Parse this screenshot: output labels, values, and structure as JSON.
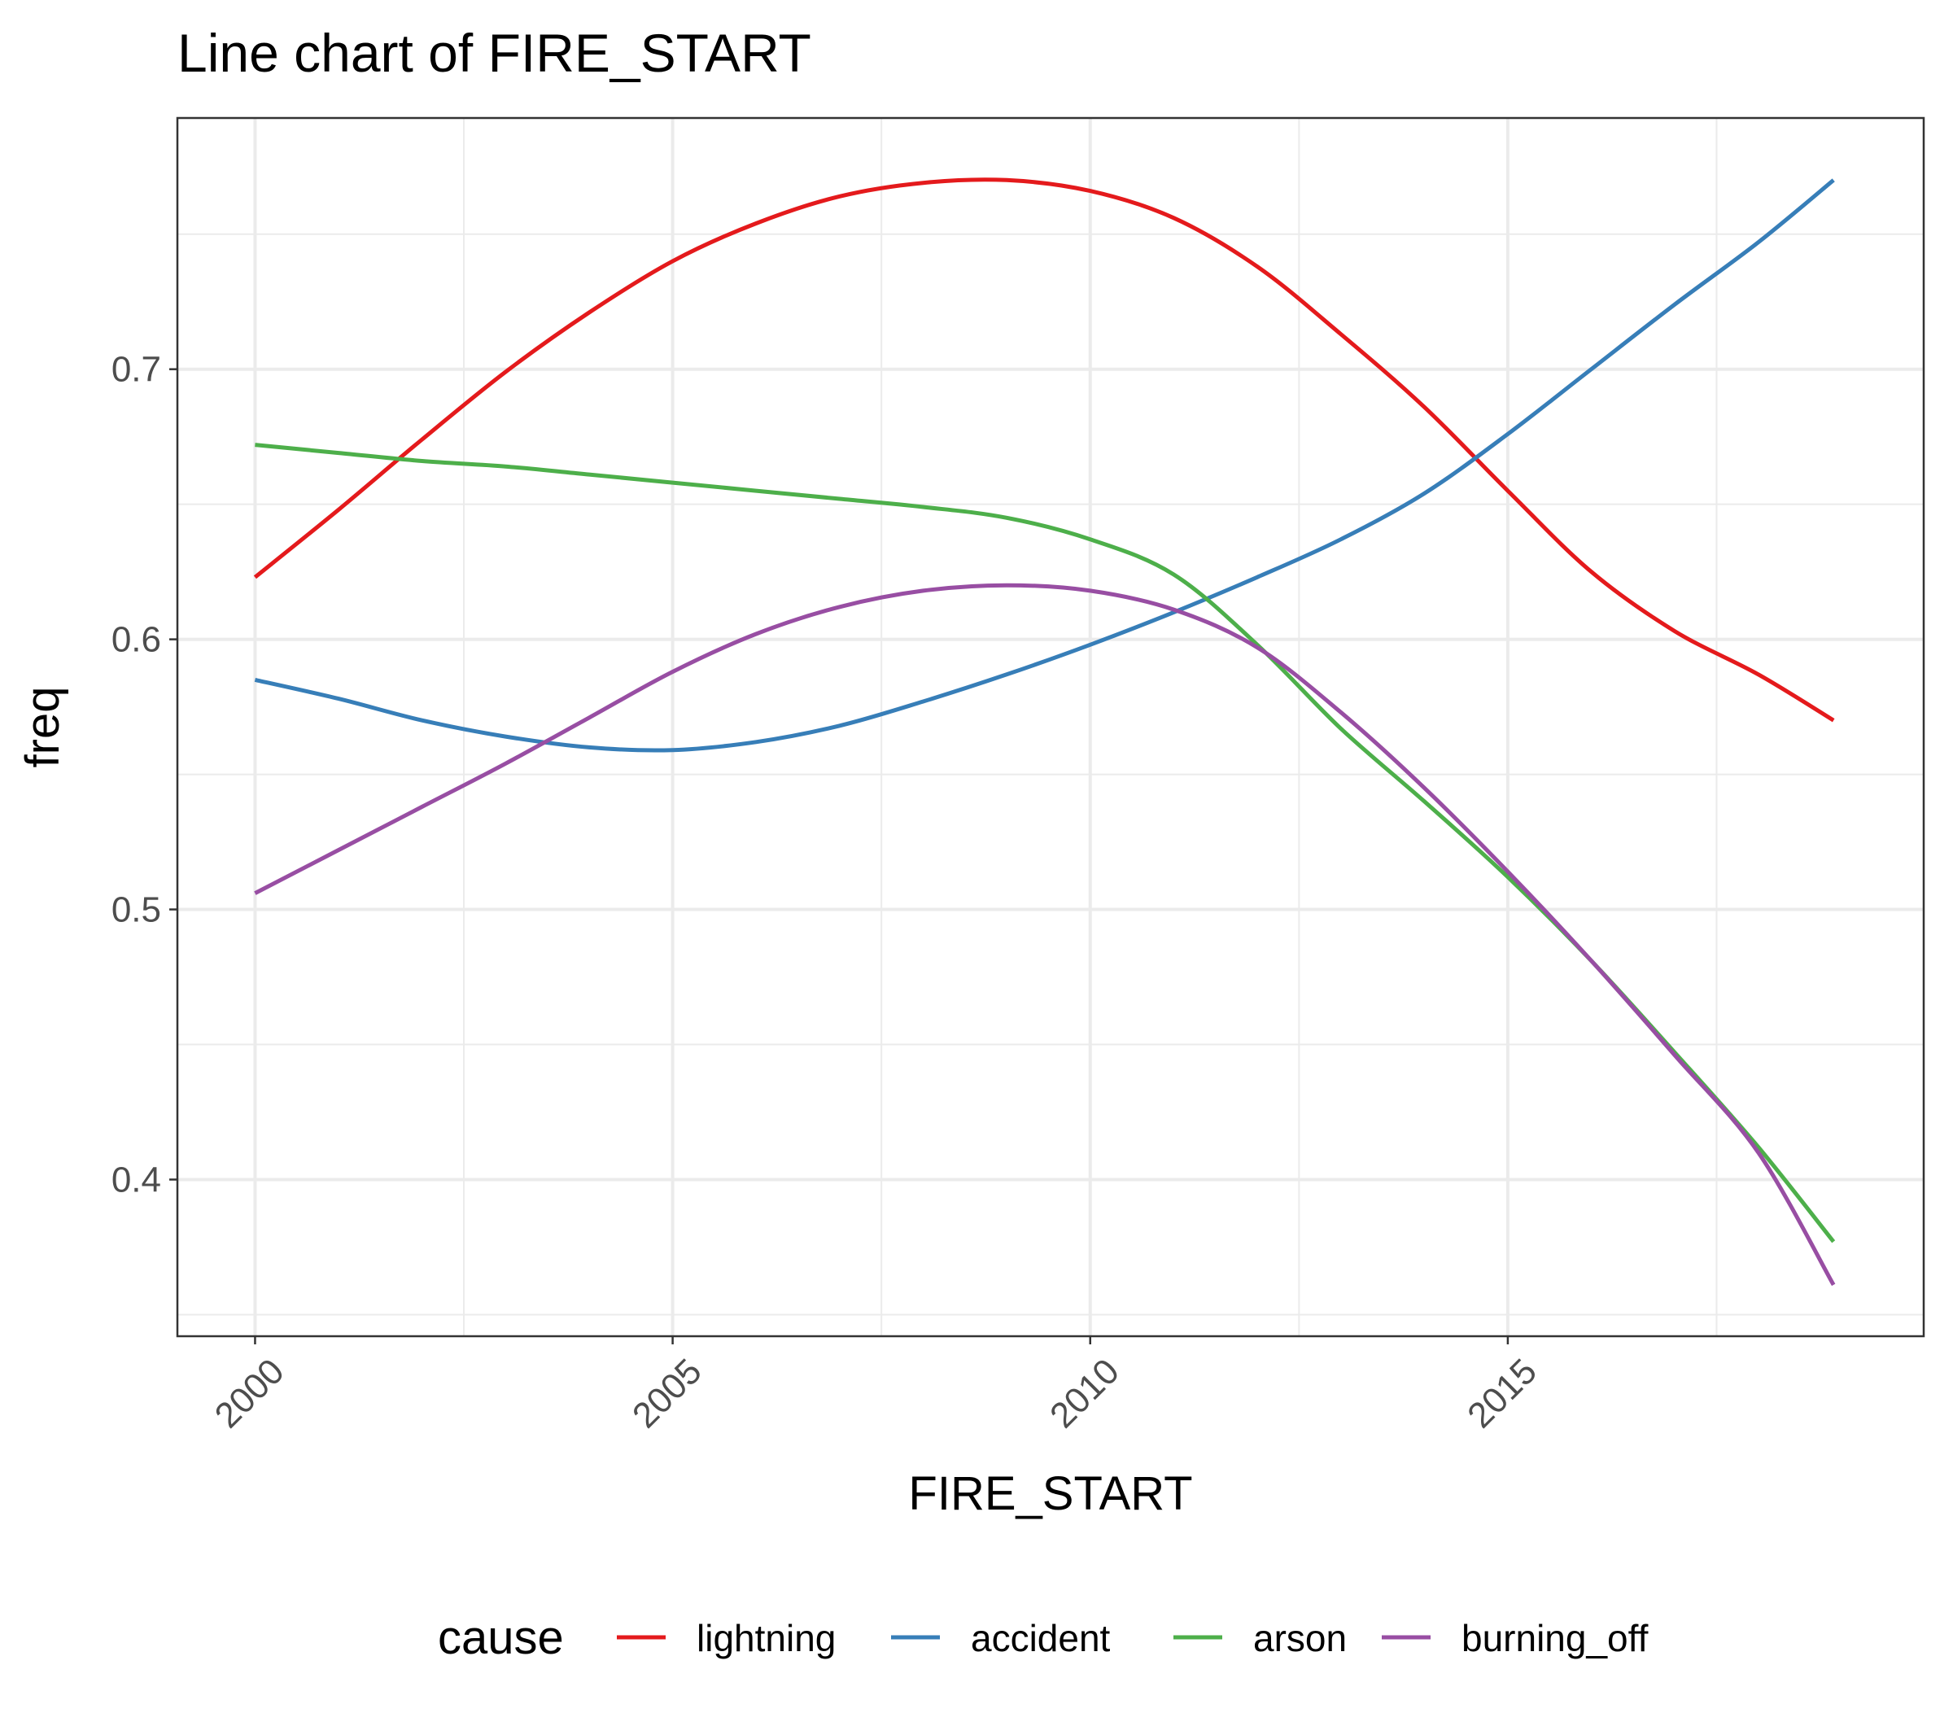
{
  "chart_data": {
    "type": "line",
    "title": "Line chart of FIRE_START",
    "xlabel": "FIRE_START",
    "ylabel": "freq",
    "xlim": [
      1999.07,
      2019.98
    ],
    "ylim": [
      0.342,
      0.793
    ],
    "x_ticks": [
      2000,
      2005,
      2010,
      2015
    ],
    "x_tick_labels": [
      "2000",
      "2005",
      "2010",
      "2015"
    ],
    "y_ticks": [
      0.4,
      0.5,
      0.6,
      0.7
    ],
    "y_tick_labels": [
      "0.4",
      "0.5",
      "0.6",
      "0.7"
    ],
    "grid": true,
    "legend": {
      "title": "cause",
      "position": "bottom"
    },
    "series": [
      {
        "name": "lightning",
        "color": "#E41A1C",
        "x": [
          2000,
          2001,
          2002,
          2003,
          2004,
          2005,
          2006,
          2007,
          2008,
          2009,
          2010,
          2011,
          2012,
          2013,
          2014,
          2015,
          2016,
          2017,
          2018,
          2019
        ],
        "y": [
          0.623,
          0.648,
          0.674,
          0.699,
          0.721,
          0.74,
          0.754,
          0.764,
          0.769,
          0.77,
          0.766,
          0.756,
          0.738,
          0.713,
          0.686,
          0.655,
          0.625,
          0.603,
          0.587,
          0.57
        ]
      },
      {
        "name": "accident",
        "color": "#377EB8",
        "x": [
          2000,
          2001,
          2002,
          2003,
          2004,
          2005,
          2006,
          2007,
          2008,
          2009,
          2010,
          2011,
          2012,
          2013,
          2014,
          2015,
          2016,
          2017,
          2018,
          2019
        ],
        "y": [
          0.585,
          0.578,
          0.57,
          0.564,
          0.56,
          0.559,
          0.562,
          0.568,
          0.577,
          0.587,
          0.598,
          0.61,
          0.623,
          0.637,
          0.654,
          0.676,
          0.7,
          0.724,
          0.747,
          0.77
        ]
      },
      {
        "name": "arson",
        "color": "#4DAF4A",
        "x": [
          2000,
          2001,
          2002,
          2003,
          2004,
          2005,
          2006,
          2007,
          2008,
          2009,
          2010,
          2011,
          2012,
          2013,
          2014,
          2015,
          2016,
          2017,
          2018,
          2019
        ],
        "y": [
          0.672,
          0.669,
          0.666,
          0.664,
          0.661,
          0.658,
          0.655,
          0.652,
          0.649,
          0.645,
          0.637,
          0.624,
          0.598,
          0.567,
          0.54,
          0.512,
          0.481,
          0.447,
          0.412,
          0.377
        ]
      },
      {
        "name": "burning_off",
        "color": "#984EA3",
        "x": [
          2000,
          2001,
          2002,
          2003,
          2004,
          2005,
          2006,
          2007,
          2008,
          2009,
          2010,
          2011,
          2012,
          2013,
          2014,
          2015,
          2016,
          2017,
          2018,
          2019
        ],
        "y": [
          0.506,
          0.522,
          0.538,
          0.554,
          0.571,
          0.588,
          0.602,
          0.612,
          0.618,
          0.62,
          0.618,
          0.611,
          0.597,
          0.573,
          0.545,
          0.514,
          0.481,
          0.446,
          0.41,
          0.361
        ]
      }
    ]
  }
}
